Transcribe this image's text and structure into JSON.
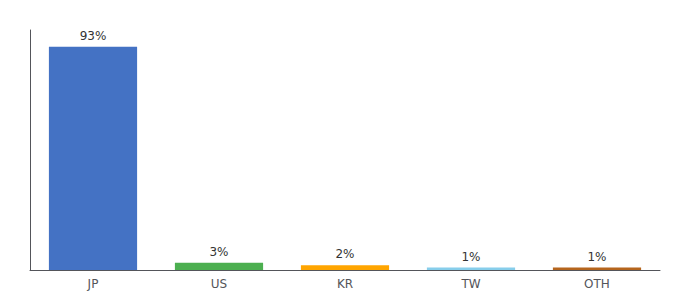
{
  "chart_data": {
    "type": "bar",
    "categories": [
      "JP",
      "US",
      "KR",
      "TW",
      "OTH"
    ],
    "values": [
      93,
      3,
      2,
      1,
      1
    ],
    "value_labels": [
      "93%",
      "3%",
      "2%",
      "1%",
      "1%"
    ],
    "colors": [
      "#4472C4",
      "#4CAF50",
      "#FFA500",
      "#87CEEB",
      "#B5651D"
    ],
    "ylim": [
      0,
      100
    ],
    "data_labels": true,
    "tick_labels": "x",
    "grid": false
  }
}
